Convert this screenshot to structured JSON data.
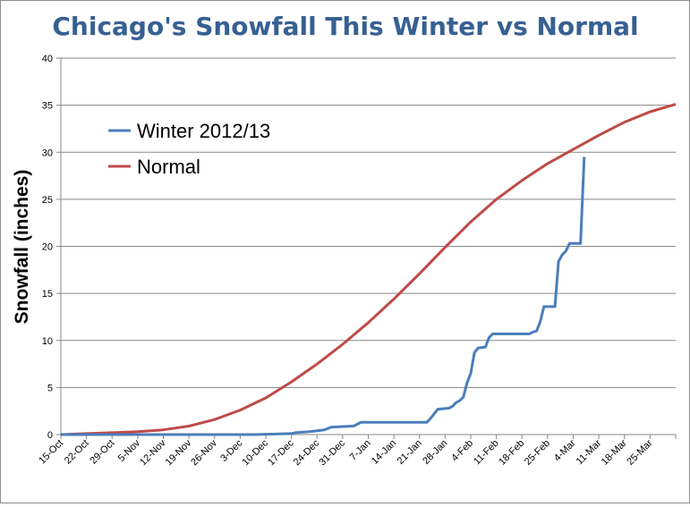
{
  "chart_data": {
    "type": "line",
    "title": "Chicago's Snowfall This Winter vs Normal",
    "xlabel": "",
    "ylabel": "Snowfall (inches)",
    "ylim": [
      0,
      40
    ],
    "y_ticks": [
      0,
      5,
      10,
      15,
      20,
      25,
      30,
      35,
      40
    ],
    "grid": "horizontal",
    "legend_position": "upper-left",
    "x_tick_labels": [
      "15-Oct",
      "22-Oct",
      "29-Oct",
      "5-Nov",
      "12-Nov",
      "19-Nov",
      "26-Nov",
      "3-Dec",
      "10-Dec",
      "17-Dec",
      "24-Dec",
      "31-Dec",
      "7-Jan",
      "14-Jan",
      "21-Jan",
      "28-Jan",
      "4-Feb",
      "11-Feb",
      "18-Feb",
      "25-Feb",
      "4-Mar",
      "11-Mar",
      "18-Mar",
      "25-Mar"
    ],
    "colors": {
      "winter": "#4a7ebb",
      "normal": "#be4b48",
      "grid": "#878787",
      "title": "#376092"
    },
    "series": [
      {
        "name": "Winter 2012/13",
        "color": "#4a7ebb",
        "points": [
          [
            "15-Oct",
            0
          ],
          [
            "7-Dec",
            0
          ],
          [
            "17-Dec",
            0.1
          ],
          [
            "18-Dec",
            0.2
          ],
          [
            "22-Dec",
            0.3
          ],
          [
            "26-Dec",
            0.5
          ],
          [
            "28-Dec",
            0.8
          ],
          [
            "3-Jan",
            0.9
          ],
          [
            "5-Jan",
            1.3
          ],
          [
            "23-Jan",
            1.3
          ],
          [
            "24-Jan",
            1.7
          ],
          [
            "26-Jan",
            2.7
          ],
          [
            "29-Jan",
            2.8
          ],
          [
            "30-Jan",
            3.0
          ],
          [
            "31-Jan",
            3.4
          ],
          [
            "1-Feb",
            3.6
          ],
          [
            "2-Feb",
            4.0
          ],
          [
            "3-Feb",
            5.5
          ],
          [
            "4-Feb",
            6.5
          ],
          [
            "5-Feb",
            8.7
          ],
          [
            "6-Feb",
            9.2
          ],
          [
            "8-Feb",
            9.3
          ],
          [
            "9-Feb",
            10.3
          ],
          [
            "10-Feb",
            10.7
          ],
          [
            "20-Feb",
            10.7
          ],
          [
            "21-Feb",
            10.9
          ],
          [
            "22-Feb",
            11.0
          ],
          [
            "23-Feb",
            12.0
          ],
          [
            "24-Feb",
            13.6
          ],
          [
            "27-Feb",
            13.6
          ],
          [
            "28-Feb",
            18.4
          ],
          [
            "1-Mar",
            19.1
          ],
          [
            "2-Mar",
            19.5
          ],
          [
            "3-Mar",
            20.3
          ],
          [
            "6-Mar",
            20.3
          ],
          [
            "7-Mar",
            29.5
          ]
        ]
      },
      {
        "name": "Normal",
        "color": "#be4b48",
        "points": [
          [
            "15-Oct",
            0
          ],
          [
            "22-Oct",
            0.1
          ],
          [
            "29-Oct",
            0.2
          ],
          [
            "5-Nov",
            0.3
          ],
          [
            "12-Nov",
            0.5
          ],
          [
            "19-Nov",
            0.9
          ],
          [
            "26-Nov",
            1.6
          ],
          [
            "3-Dec",
            2.6
          ],
          [
            "10-Dec",
            3.9
          ],
          [
            "17-Dec",
            5.6
          ],
          [
            "24-Dec",
            7.5
          ],
          [
            "31-Dec",
            9.6
          ],
          [
            "7-Jan",
            11.9
          ],
          [
            "14-Jan",
            14.4
          ],
          [
            "21-Jan",
            17.1
          ],
          [
            "28-Jan",
            19.9
          ],
          [
            "4-Feb",
            22.6
          ],
          [
            "11-Feb",
            25.0
          ],
          [
            "18-Feb",
            27.0
          ],
          [
            "25-Feb",
            28.8
          ],
          [
            "4-Mar",
            30.3
          ],
          [
            "11-Mar",
            31.8
          ],
          [
            "18-Mar",
            33.2
          ],
          [
            "25-Mar",
            34.3
          ],
          [
            "1-Apr",
            35.1
          ]
        ]
      }
    ]
  }
}
